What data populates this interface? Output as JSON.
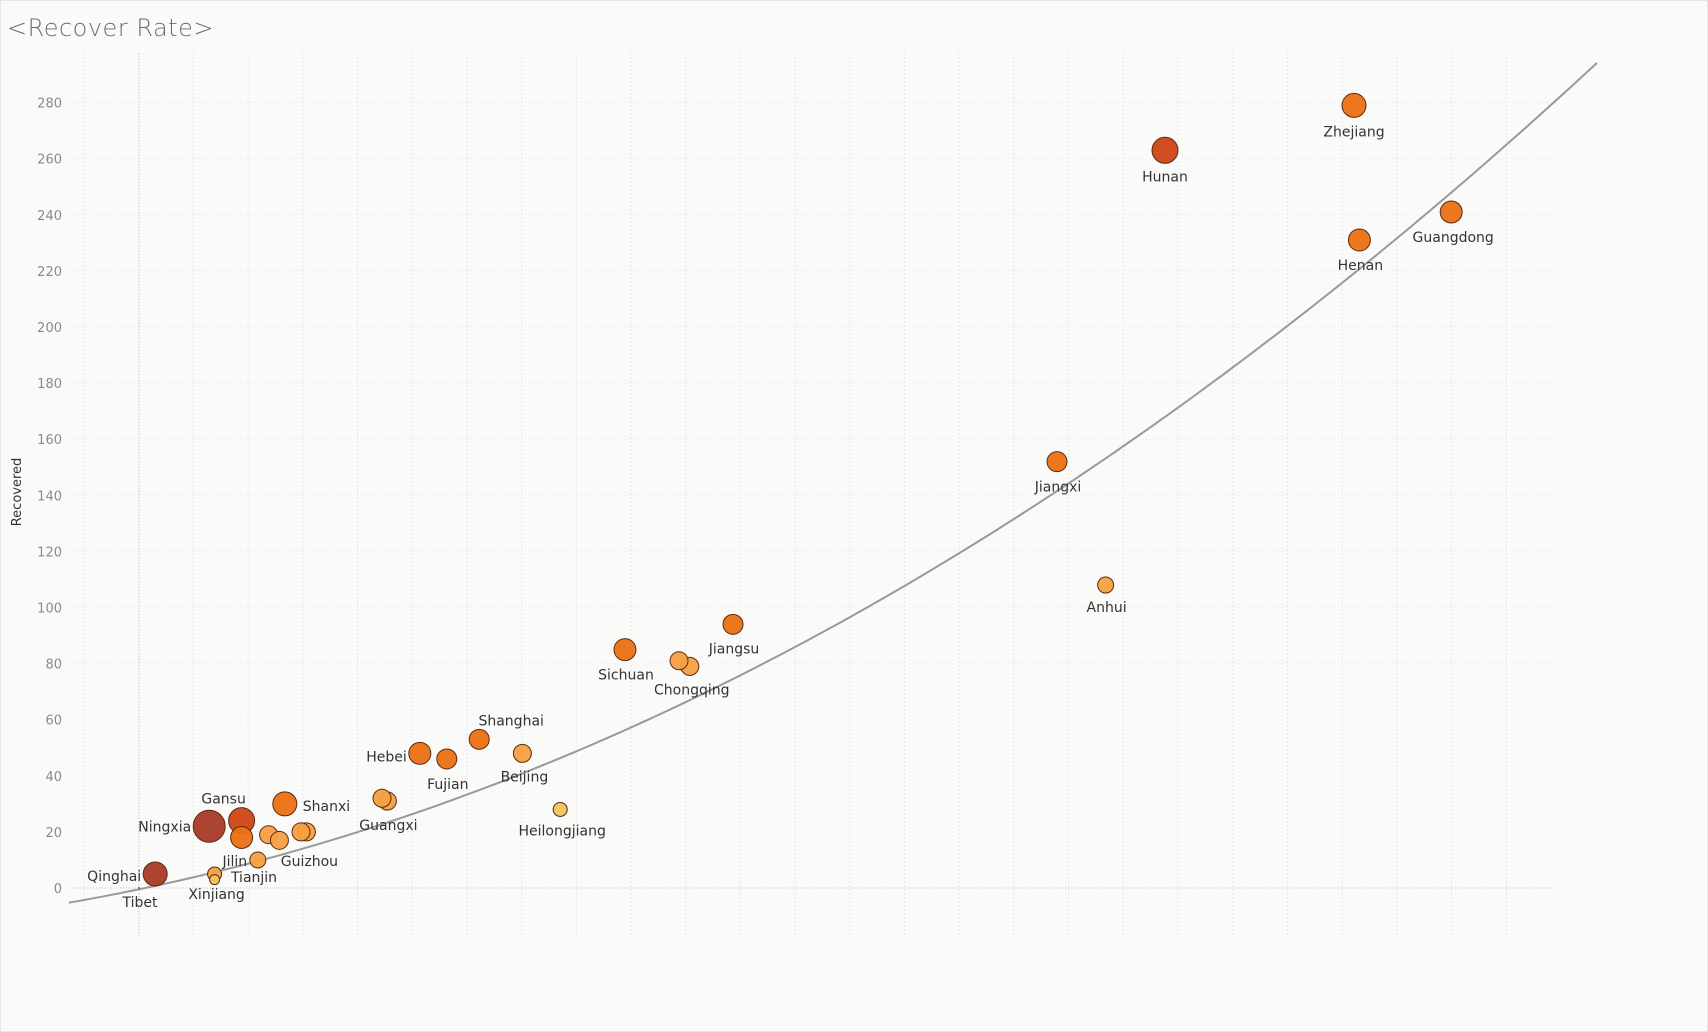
{
  "title": "<Recover Rate>",
  "chart_data": {
    "type": "scatter",
    "title": "<Recover Rate>",
    "xlabel": "",
    "ylabel": "Recovered",
    "ylim": [
      -3,
      293
    ],
    "xlim": [
      -13,
      270
    ],
    "yticks": [
      0,
      20,
      40,
      60,
      80,
      100,
      120,
      140,
      160,
      180,
      200,
      220,
      240,
      260,
      280
    ],
    "grid": true,
    "trend_line": {
      "type": "polynomial",
      "coefficients": [
        -0.46,
        0.4,
        0.00256
      ]
    },
    "colors": {
      "light": "#f2c45c",
      "mid": "#f5a042",
      "strong": "#ec7013",
      "deep": "#cf4417",
      "darkest": "#a93a26",
      "trend": "#999999"
    },
    "points": [
      {
        "label": "Zhejiang",
        "x": 225,
        "y": 279,
        "size": 12,
        "color": "strong"
      },
      {
        "label": "Hunan",
        "x": 190,
        "y": 263,
        "size": 13,
        "color": "deep"
      },
      {
        "label": "Guangdong",
        "x": 243,
        "y": 241,
        "size": 11,
        "color": "strong"
      },
      {
        "label": "Henan",
        "x": 226,
        "y": 231,
        "size": 11,
        "color": "strong"
      },
      {
        "label": "Jiangxi",
        "x": 170,
        "y": 152,
        "size": 10,
        "color": "strong"
      },
      {
        "label": "Anhui",
        "x": 179,
        "y": 108,
        "size": 8,
        "color": "mid"
      },
      {
        "label": "Jiangsu",
        "x": 110,
        "y": 94,
        "size": 10,
        "color": "strong"
      },
      {
        "label": "Sichuan",
        "x": 90,
        "y": 85,
        "size": 11,
        "color": "strong"
      },
      {
        "label": "Chongqing",
        "x": 102,
        "y": 79,
        "size": 9,
        "color": "mid"
      },
      {
        "label": "",
        "x": 100,
        "y": 81,
        "size": 9,
        "color": "mid"
      },
      {
        "label": "Shanghai",
        "x": 63,
        "y": 53,
        "size": 10,
        "color": "strong"
      },
      {
        "label": "Beijing",
        "x": 71,
        "y": 48,
        "size": 9,
        "color": "mid"
      },
      {
        "label": "Hebei",
        "x": 52,
        "y": 48,
        "size": 11,
        "color": "strong"
      },
      {
        "label": "Fujian",
        "x": 57,
        "y": 46,
        "size": 10,
        "color": "strong"
      },
      {
        "label": "Heilongjiang",
        "x": 78,
        "y": 28,
        "size": 7,
        "color": "light"
      },
      {
        "label": "Guangxi",
        "x": 46,
        "y": 31,
        "size": 9,
        "color": "mid"
      },
      {
        "label": "",
        "x": 45,
        "y": 32,
        "size": 9,
        "color": "mid"
      },
      {
        "label": "Shanxi",
        "x": 27,
        "y": 30,
        "size": 12,
        "color": "strong"
      },
      {
        "label": "Gansu",
        "x": 19,
        "y": 24,
        "size": 13,
        "color": "deep"
      },
      {
        "label": "",
        "x": 19,
        "y": 18,
        "size": 11,
        "color": "strong"
      },
      {
        "label": "Ningxia",
        "x": 13,
        "y": 22,
        "size": 16,
        "color": "darkest"
      },
      {
        "label": "Guizhou",
        "x": 31,
        "y": 20,
        "size": 9,
        "color": "mid"
      },
      {
        "label": "",
        "x": 30,
        "y": 20,
        "size": 9,
        "color": "mid"
      },
      {
        "label": "",
        "x": 24,
        "y": 19,
        "size": 9,
        "color": "mid"
      },
      {
        "label": "",
        "x": 26,
        "y": 17,
        "size": 9,
        "color": "mid"
      },
      {
        "label": "Jilin",
        "x": 22,
        "y": 10,
        "size": 8,
        "color": "mid"
      },
      {
        "label": "Xinjiang",
        "x": 14,
        "y": 5,
        "size": 7,
        "color": "mid"
      },
      {
        "label": "",
        "x": 14,
        "y": 3,
        "size": 5,
        "color": "light"
      },
      {
        "label": "Tianjin",
        "x": 0,
        "y": 0,
        "size": 0,
        "color": "mid"
      },
      {
        "label": "Qinghai",
        "x": 3,
        "y": 5,
        "size": 12,
        "color": "darkest"
      },
      {
        "label": "Tibet",
        "x": 0,
        "y": 0,
        "size": 1,
        "color": "darkest"
      }
    ]
  }
}
